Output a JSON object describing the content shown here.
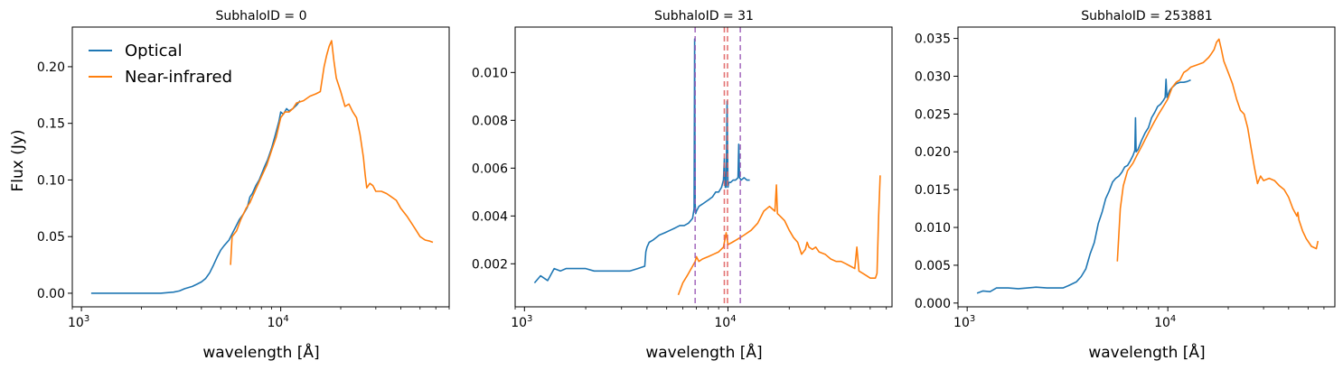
{
  "chart_data": [
    {
      "type": "line",
      "title": "SubhaloID = 0",
      "xlabel": "wavelength [Å]",
      "ylabel": "Flux (Jy)",
      "xscale": "log",
      "xlim": [
        900,
        70000
      ],
      "ylim": [
        -0.012,
        0.235
      ],
      "xticks": [
        {
          "v": 1000,
          "label": "10",
          "exp": "3"
        },
        {
          "v": 10000,
          "label": "10",
          "exp": "4"
        }
      ],
      "yticks": [
        0.0,
        0.05,
        0.1,
        0.15,
        0.2
      ],
      "ytick_labels": [
        "0.00",
        "0.05",
        "0.10",
        "0.15",
        "0.20"
      ],
      "grid": false,
      "legend": {
        "placement": "top-left",
        "entries": [
          {
            "label": "Optical",
            "color": "#1f77b4"
          },
          {
            "label": "Near-infrared",
            "color": "#ff7f0e"
          }
        ]
      },
      "series": [
        {
          "name": "Optical",
          "color": "#1f77b4",
          "x": [
            1120,
            1500,
            2000,
            2500,
            2900,
            3100,
            3300,
            3600,
            3800,
            4000,
            4200,
            4400,
            4600,
            4800,
            5000,
            5200,
            5500,
            5800,
            6000,
            6200,
            6500,
            6800,
            7000,
            7200,
            7500,
            7800,
            8000,
            8300,
            8600,
            9000,
            9400,
            9800,
            10000,
            10300,
            10700,
            11000,
            11500,
            12000,
            12500
          ],
          "y": [
            0.0,
            0.0,
            0.0,
            0.0,
            0.001,
            0.002,
            0.004,
            0.006,
            0.008,
            0.01,
            0.013,
            0.018,
            0.025,
            0.032,
            0.038,
            0.042,
            0.047,
            0.055,
            0.06,
            0.065,
            0.07,
            0.076,
            0.085,
            0.088,
            0.095,
            0.1,
            0.105,
            0.112,
            0.118,
            0.128,
            0.14,
            0.152,
            0.16,
            0.158,
            0.163,
            0.161,
            0.163,
            0.166,
            0.17
          ]
        },
        {
          "name": "Near-infrared",
          "color": "#ff7f0e",
          "x": [
            5600,
            5700,
            6000,
            6300,
            6700,
            7000,
            7500,
            8000,
            8500,
            9000,
            9500,
            10000,
            10500,
            11000,
            11500,
            12000,
            13000,
            14000,
            15000,
            15800,
            16500,
            17000,
            17500,
            18000,
            18500,
            19000,
            20000,
            21000,
            22000,
            23000,
            24000,
            25000,
            26000,
            26500,
            27000,
            28000,
            29000,
            30000,
            32000,
            34000,
            36000,
            38000,
            40000,
            43000,
            46000,
            48000,
            50000,
            53000,
            56000,
            58000
          ],
          "y": [
            0.025,
            0.05,
            0.055,
            0.065,
            0.075,
            0.08,
            0.092,
            0.103,
            0.113,
            0.126,
            0.138,
            0.155,
            0.16,
            0.16,
            0.163,
            0.168,
            0.17,
            0.174,
            0.176,
            0.178,
            0.2,
            0.21,
            0.218,
            0.223,
            0.205,
            0.19,
            0.178,
            0.165,
            0.167,
            0.16,
            0.155,
            0.14,
            0.12,
            0.105,
            0.093,
            0.097,
            0.095,
            0.09,
            0.09,
            0.088,
            0.085,
            0.082,
            0.075,
            0.068,
            0.06,
            0.055,
            0.05,
            0.047,
            0.046,
            0.045
          ]
        }
      ],
      "vlines": []
    },
    {
      "type": "line",
      "title": "SubhaloID = 31",
      "xlabel": "wavelength [Å]",
      "ylabel": "",
      "xscale": "log",
      "xlim": [
        900,
        64000
      ],
      "ylim": [
        0.0002,
        0.0119
      ],
      "xticks": [
        {
          "v": 1000,
          "label": "10",
          "exp": "3"
        },
        {
          "v": 10000,
          "label": "10",
          "exp": "4"
        }
      ],
      "yticks": [
        0.002,
        0.004,
        0.006,
        0.008,
        0.01
      ],
      "ytick_labels": [
        "0.002",
        "0.004",
        "0.006",
        "0.008",
        "0.010"
      ],
      "grid": false,
      "series": [
        {
          "name": "Optical",
          "color": "#1f77b4",
          "x": [
            1120,
            1200,
            1300,
            1400,
            1500,
            1600,
            1800,
            2000,
            2200,
            2500,
            2700,
            3000,
            3300,
            3600,
            3900,
            3950,
            4000,
            4100,
            4300,
            4600,
            4900,
            5200,
            5500,
            5800,
            6100,
            6400,
            6700,
            6820,
            6860,
            6900,
            6940,
            7000,
            7200,
            7500,
            7800,
            8100,
            8400,
            8700,
            9000,
            9300,
            9500,
            9600,
            9700,
            9800,
            9900,
            10000,
            10100,
            10300,
            10600,
            10900,
            11200,
            11300,
            11400,
            11600,
            12000,
            12400,
            12800
          ],
          "y": [
            0.0012,
            0.0015,
            0.0013,
            0.0018,
            0.0017,
            0.0018,
            0.0018,
            0.0018,
            0.0017,
            0.0017,
            0.0017,
            0.0017,
            0.0017,
            0.0018,
            0.0019,
            0.0025,
            0.0027,
            0.0029,
            0.003,
            0.0032,
            0.0033,
            0.0034,
            0.0035,
            0.0036,
            0.0036,
            0.0037,
            0.0039,
            0.0043,
            0.0114,
            0.0045,
            0.0041,
            0.0042,
            0.0044,
            0.0045,
            0.0046,
            0.0047,
            0.0048,
            0.005,
            0.005,
            0.0052,
            0.0055,
            0.0064,
            0.0052,
            0.0052,
            0.0088,
            0.0052,
            0.0054,
            0.0054,
            0.0055,
            0.0055,
            0.0056,
            0.007,
            0.0056,
            0.0055,
            0.0056,
            0.0055,
            0.0055
          ]
        },
        {
          "name": "Near-infrared",
          "color": "#ff7f0e",
          "x": [
            5700,
            6000,
            6300,
            6700,
            6900,
            7000,
            7200,
            7500,
            8000,
            8500,
            9000,
            9500,
            9800,
            10000,
            10500,
            11000,
            11500,
            12000,
            13000,
            14000,
            15000,
            16000,
            16500,
            17000,
            17300,
            17500,
            18000,
            19000,
            20000,
            21000,
            22000,
            23000,
            24000,
            24500,
            25000,
            26000,
            27000,
            28000,
            30000,
            32000,
            34000,
            36000,
            38000,
            40000,
            42000,
            43000,
            44000,
            46000,
            48000,
            50000,
            52000,
            53000,
            54000,
            55000,
            56000
          ],
          "y": [
            0.0007,
            0.0012,
            0.0015,
            0.0019,
            0.0021,
            0.0023,
            0.0021,
            0.0022,
            0.0023,
            0.0024,
            0.0025,
            0.0027,
            0.0033,
            0.0028,
            0.0029,
            0.003,
            0.0031,
            0.0032,
            0.0034,
            0.0037,
            0.0042,
            0.0044,
            0.0043,
            0.0042,
            0.0053,
            0.0041,
            0.004,
            0.0038,
            0.0034,
            0.0031,
            0.0029,
            0.0024,
            0.0026,
            0.0029,
            0.0027,
            0.0026,
            0.0027,
            0.0025,
            0.0024,
            0.0022,
            0.0021,
            0.0021,
            0.002,
            0.0019,
            0.0018,
            0.0027,
            0.0017,
            0.0016,
            0.0015,
            0.0014,
            0.0014,
            0.0014,
            0.0016,
            0.004,
            0.0057
          ]
        }
      ],
      "vlines": [
        {
          "x": 6900,
          "color": "#9b59b6"
        },
        {
          "x": 9600,
          "color": "#e05c5c"
        },
        {
          "x": 9950,
          "color": "#e05c5c"
        },
        {
          "x": 11500,
          "color": "#9b59b6"
        }
      ]
    },
    {
      "type": "line",
      "title": "SubhaloID = 253881",
      "xlabel": "wavelength [Å]",
      "ylabel": "",
      "xscale": "log",
      "xlim": [
        900,
        68000
      ],
      "ylim": [
        -0.0005,
        0.0365
      ],
      "xticks": [
        {
          "v": 1000,
          "label": "10",
          "exp": "3"
        },
        {
          "v": 10000,
          "label": "10",
          "exp": "4"
        }
      ],
      "yticks": [
        0.0,
        0.005,
        0.01,
        0.015,
        0.02,
        0.025,
        0.03,
        0.035
      ],
      "ytick_labels": [
        "0.000",
        "0.005",
        "0.010",
        "0.015",
        "0.020",
        "0.025",
        "0.030",
        "0.035"
      ],
      "grid": false,
      "series": [
        {
          "name": "Optical",
          "color": "#1f77b4",
          "x": [
            1120,
            1200,
            1300,
            1400,
            1600,
            1800,
            2000,
            2200,
            2500,
            2800,
            3000,
            3200,
            3500,
            3700,
            3900,
            4100,
            4300,
            4500,
            4700,
            4900,
            5100,
            5300,
            5500,
            5700,
            5900,
            6100,
            6300,
            6500,
            6700,
            6850,
            6900,
            6950,
            7100,
            7400,
            7700,
            8000,
            8300,
            8600,
            8900,
            9200,
            9500,
            9700,
            9800,
            9900,
            10000,
            10200,
            10500,
            11000,
            11500,
            12000,
            12500,
            13000
          ],
          "y": [
            0.0013,
            0.0016,
            0.0015,
            0.002,
            0.002,
            0.0019,
            0.002,
            0.0021,
            0.002,
            0.002,
            0.002,
            0.0023,
            0.0028,
            0.0035,
            0.0045,
            0.0065,
            0.008,
            0.0105,
            0.012,
            0.0138,
            0.0148,
            0.016,
            0.0165,
            0.0168,
            0.0173,
            0.018,
            0.0182,
            0.0188,
            0.0195,
            0.0202,
            0.0245,
            0.02,
            0.0203,
            0.0215,
            0.0225,
            0.0232,
            0.0245,
            0.0252,
            0.026,
            0.0263,
            0.0268,
            0.0272,
            0.0296,
            0.0272,
            0.0275,
            0.0281,
            0.0285,
            0.029,
            0.0292,
            0.0292,
            0.0293,
            0.0295
          ]
        },
        {
          "name": "Near-infrared",
          "color": "#ff7f0e",
          "x": [
            5600,
            5800,
            6000,
            6300,
            6700,
            7000,
            7500,
            8000,
            8500,
            9000,
            9500,
            10000,
            10500,
            11000,
            11500,
            12000,
            12500,
            13000,
            14000,
            15000,
            16000,
            16500,
            17000,
            17500,
            18000,
            18500,
            19000,
            20000,
            21000,
            22000,
            23000,
            24000,
            25000,
            26000,
            27000,
            28000,
            29000,
            30000,
            32000,
            34000,
            36000,
            38000,
            40000,
            42000,
            44000,
            44500,
            45000,
            47000,
            49000,
            52000,
            55000,
            56000
          ],
          "y": [
            0.0055,
            0.0125,
            0.0155,
            0.0175,
            0.0185,
            0.0195,
            0.021,
            0.0225,
            0.0238,
            0.025,
            0.026,
            0.027,
            0.0285,
            0.0292,
            0.0295,
            0.0305,
            0.0308,
            0.0312,
            0.0315,
            0.0318,
            0.0325,
            0.033,
            0.0335,
            0.0345,
            0.0349,
            0.0335,
            0.032,
            0.0305,
            0.029,
            0.027,
            0.0255,
            0.025,
            0.0232,
            0.0205,
            0.018,
            0.0158,
            0.0168,
            0.0162,
            0.0165,
            0.0162,
            0.0155,
            0.015,
            0.014,
            0.0125,
            0.0115,
            0.012,
            0.011,
            0.0095,
            0.0085,
            0.0075,
            0.0072,
            0.0082
          ]
        }
      ],
      "vlines": []
    }
  ]
}
